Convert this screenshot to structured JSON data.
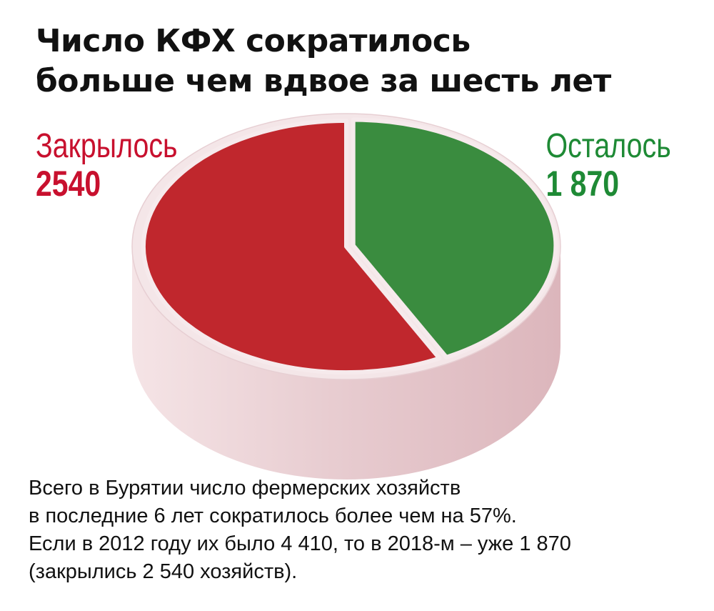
{
  "title": {
    "line1": "Число КФХ сократилось",
    "line2": "больше чем вдвое за шесть лет"
  },
  "chart_data": {
    "type": "pie",
    "slices": [
      {
        "label": "Закрылось",
        "value": 2540,
        "value_text": "2540",
        "color": "#c0272d"
      },
      {
        "label": "Осталось",
        "value": 1870,
        "value_text": "1 870",
        "color": "#3a8c3f"
      }
    ],
    "exploded_slice": "Осталось",
    "style": "3d"
  },
  "colors": {
    "closed_label": "#c8102e",
    "left_label": "#1e8a35",
    "pie_side": "#e3c2c7",
    "pie_rim": "#f4e6e8"
  },
  "caption": {
    "line1": "Всего в Бурятии число фермерских хозяйств",
    "line2": "в последние 6 лет сократилось более чем на 57%.",
    "line3": "Если в 2012 году их было 4 410, то в 2018-м – уже 1 870",
    "line4": "(закрылись 2 540 хозяйств)."
  }
}
